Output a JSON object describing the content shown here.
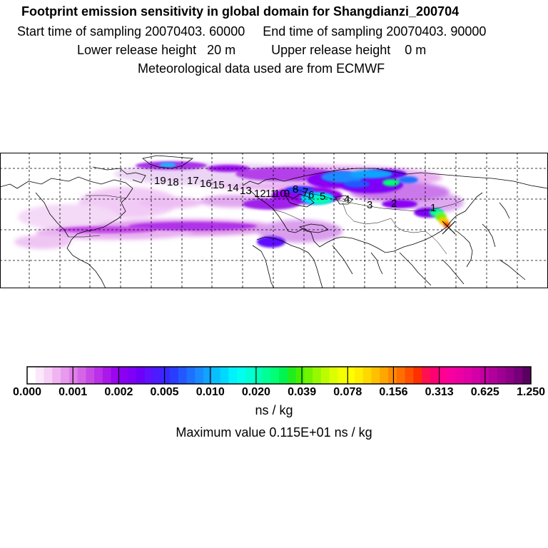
{
  "header": {
    "title": "Footprint emission sensitivity in global domain for Shangdianzi_200704",
    "line2": "Start time of sampling 20070403. 60000     End time of sampling 20070403. 90000",
    "line3": "Lower release height   20 m          Upper release height    0 m",
    "line4": "Meteorological data used are from ECMWF"
  },
  "trajectory_labels": [
    "1",
    "2",
    "3",
    "4",
    "5",
    "6",
    "7",
    "8",
    "9",
    "10",
    "11",
    "12",
    "13",
    "14",
    "15",
    "16",
    "17",
    "18",
    "19"
  ],
  "colorbar": {
    "tick_labels": [
      "0.000",
      "0.001",
      "0.002",
      "0.005",
      "0.010",
      "0.020",
      "0.039",
      "0.078",
      "0.156",
      "0.313",
      "0.625",
      "1.250"
    ],
    "colors": [
      "#ffffff",
      "#fbe8fb",
      "#f6d0f6",
      "#f0b4f2",
      "#e89aee",
      "#e07ee8",
      "#d466e6",
      "#c84ae6",
      "#bb30e8",
      "#aa18ea",
      "#9a06ee",
      "#8a00f2",
      "#7e00f6",
      "#6e00fa",
      "#5e10ff",
      "#4a1cff",
      "#3628ff",
      "#2a3cff",
      "#2458ff",
      "#1e70ff",
      "#1a8aff",
      "#10a4ff",
      "#08c0ff",
      "#00d8ff",
      "#00f2ff",
      "#00ffee",
      "#00ffd4",
      "#00ffb6",
      "#00ff96",
      "#00ff74",
      "#00f450",
      "#20ec20",
      "#44f000",
      "#70f400",
      "#98f800",
      "#bcfc00",
      "#dcff00",
      "#f4ff00",
      "#ffff00",
      "#ffee00",
      "#ffd800",
      "#ffc000",
      "#ffa600",
      "#ff8a00",
      "#ff6e00",
      "#ff5000",
      "#ff3000",
      "#ff1050",
      "#ff0072",
      "#ff0090",
      "#f800a0",
      "#ec00a4",
      "#e000a6",
      "#d200a6",
      "#c200a0",
      "#b2009a",
      "#a00092",
      "#8c0088",
      "#760078",
      "#5a0060"
    ],
    "units": "ns / kg",
    "max_label": "Maximum value  0.115E+01 ns / kg"
  }
}
